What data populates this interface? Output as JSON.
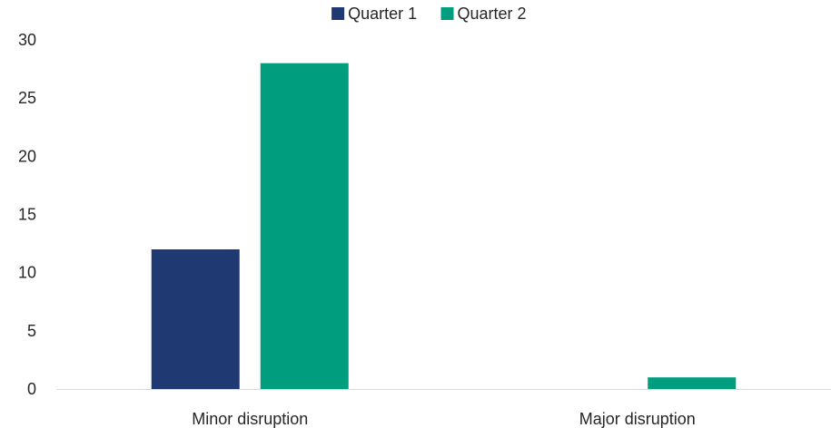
{
  "chart_data": {
    "type": "bar",
    "categories": [
      "Minor disruption",
      "Major disruption"
    ],
    "series": [
      {
        "name": "Quarter 1",
        "values": [
          12,
          0
        ],
        "color": "#1F3A73"
      },
      {
        "name": "Quarter 2",
        "values": [
          28,
          1
        ],
        "color": "#009E7E"
      }
    ],
    "title": "",
    "xlabel": "",
    "ylabel": "",
    "ylim": [
      0,
      30
    ],
    "yticks": [
      0,
      5,
      10,
      15,
      20,
      25,
      30
    ],
    "grid": false,
    "legend_position": "top"
  }
}
